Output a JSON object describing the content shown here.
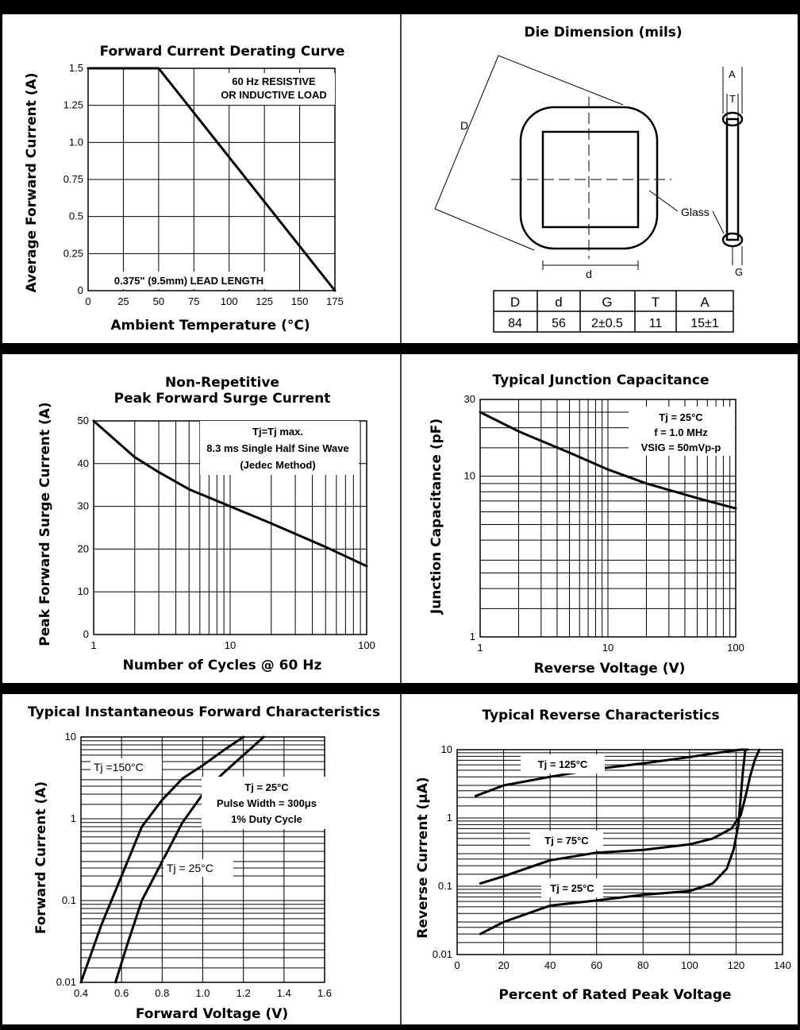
{
  "tables": {
    "die": {
      "headers": [
        "D",
        "d",
        "G",
        "T",
        "A"
      ],
      "values": [
        "84",
        "56",
        "2±0.5",
        "11",
        "15±1"
      ]
    }
  },
  "labels": {
    "die_D": "D",
    "die_d": "d",
    "die_glass": "Glass",
    "die_A": "A",
    "die_T": "T",
    "die_G": "G"
  },
  "chart_data": [
    {
      "id": "derating",
      "type": "line",
      "title": "Forward Current Derating Curve",
      "xlabel": "Ambient Temperature (°C)",
      "ylabel": "Average Forward Current (A)",
      "xlim": [
        0,
        175
      ],
      "ylim": [
        0,
        1.5
      ],
      "xticks": [
        "0",
        "25",
        "50",
        "75",
        "100",
        "125",
        "150",
        "175"
      ],
      "yticks": [
        "0",
        "0.25",
        "0.5",
        "0.75",
        "1.0",
        "1.25",
        "1.5"
      ],
      "annotations": [
        "60 Hz RESISTIVE",
        "OR INDUCTIVE LOAD",
        "0.375\" (9.5mm) LEAD LENGTH"
      ],
      "series": [
        {
          "x": [
            0,
            50,
            175
          ],
          "y": [
            1.5,
            1.5,
            0
          ]
        }
      ]
    },
    {
      "id": "die",
      "type": "table",
      "title": "Die Dimension (mils)"
    },
    {
      "id": "surge",
      "type": "line",
      "title": [
        "Non-Repetitive",
        "Peak Forward Surge Current"
      ],
      "xlabel": "Number of Cycles @ 60 Hz",
      "ylabel": "Peak Forward Surge Current (A)",
      "xscale": "log",
      "xlim": [
        1,
        100
      ],
      "ylim": [
        0,
        50
      ],
      "xticks": [
        "1",
        "10",
        "100"
      ],
      "yticks": [
        "0",
        "10",
        "20",
        "30",
        "40",
        "50"
      ],
      "annotations": [
        "Tj=Tj max.",
        "8.3 ms Single Half Sine Wave",
        "(Jedec Method)"
      ],
      "series": [
        {
          "x": [
            1,
            2,
            3,
            5,
            10,
            20,
            50,
            100
          ],
          "y": [
            50,
            41.5,
            38,
            34,
            30,
            26,
            20.5,
            16
          ]
        }
      ]
    },
    {
      "id": "capacitance",
      "type": "line",
      "title": "Typical Junction Capacitance",
      "xlabel": "Reverse Voltage (V)",
      "ylabel": "Junction Capacitance (pF)",
      "xscale": "log",
      "yscale": "log",
      "xlim": [
        1,
        100
      ],
      "ylim": [
        1,
        30
      ],
      "xticks": [
        "1",
        "10",
        "100"
      ],
      "yticks": [
        "1",
        "10",
        "30"
      ],
      "annotations": [
        "Tj = 25°C",
        "f = 1.0 MHz",
        "VSIG = 50mVp-p"
      ],
      "series": [
        {
          "x": [
            1,
            2,
            5,
            10,
            20,
            50,
            100
          ],
          "y": [
            25,
            19,
            14,
            11,
            9,
            7.3,
            6.3
          ]
        }
      ]
    },
    {
      "id": "forward",
      "type": "line",
      "title": "Typical Instantaneous Forward Characteristics",
      "xlabel": "Forward Voltage (V)",
      "ylabel": "Forward Current (A)",
      "yscale": "log",
      "xlim": [
        0.4,
        1.6
      ],
      "ylim": [
        0.01,
        10
      ],
      "xticks": [
        "0.4",
        "0.6",
        "0.8",
        "1.0",
        "1.2",
        "1.4",
        "1.6"
      ],
      "yticks": [
        "0.01",
        "0.1",
        "1",
        "10"
      ],
      "annotations": [
        "Tj = 25°C",
        "Pulse Width = 300μs",
        "1% Duty Cycle"
      ],
      "series": [
        {
          "name": "Tj =150°C",
          "x": [
            0.4,
            0.5,
            0.6,
            0.7,
            0.8,
            0.9,
            1.0,
            1.1,
            1.2
          ],
          "y": [
            0.01,
            0.05,
            0.2,
            0.8,
            1.7,
            3.1,
            4.5,
            6.8,
            10
          ]
        },
        {
          "name": "Tj = 25°C",
          "x": [
            0.57,
            0.63,
            0.7,
            0.8,
            0.9,
            1.0,
            1.1,
            1.2,
            1.3
          ],
          "y": [
            0.01,
            0.03,
            0.1,
            0.3,
            0.9,
            2,
            3.6,
            6,
            10
          ]
        }
      ]
    },
    {
      "id": "reverse",
      "type": "line",
      "title": "Typical Reverse Characteristics",
      "xlabel": "Percent of Rated Peak Voltage",
      "ylabel": "Reverse Current (μA)",
      "yscale": "log",
      "xlim": [
        0,
        140
      ],
      "ylim": [
        0.01,
        10
      ],
      "xticks": [
        "0",
        "20",
        "40",
        "60",
        "80",
        "100",
        "120",
        "140"
      ],
      "yticks": [
        "0.01",
        "0.1",
        "1",
        "10"
      ],
      "series": [
        {
          "name": "Tj = 125°C",
          "x": [
            8,
            20,
            40,
            60,
            80,
            100,
            115,
            122,
            125
          ],
          "y": [
            2.1,
            3,
            4,
            5.2,
            6.3,
            7.8,
            9.3,
            10,
            10
          ]
        },
        {
          "name": "Tj = 75°C",
          "x": [
            10,
            20,
            40,
            60,
            80,
            100,
            110,
            118,
            122,
            124,
            126,
            128,
            130
          ],
          "y": [
            0.11,
            0.14,
            0.24,
            0.31,
            0.34,
            0.41,
            0.5,
            0.7,
            1.1,
            2,
            4,
            7,
            10
          ]
        },
        {
          "name": "Tj = 25°C",
          "x": [
            10,
            20,
            40,
            60,
            80,
            100,
            110,
            116,
            119,
            121,
            122,
            123,
            124
          ],
          "y": [
            0.02,
            0.03,
            0.052,
            0.062,
            0.075,
            0.085,
            0.11,
            0.18,
            0.35,
            0.8,
            2,
            5,
            10
          ]
        }
      ]
    }
  ]
}
